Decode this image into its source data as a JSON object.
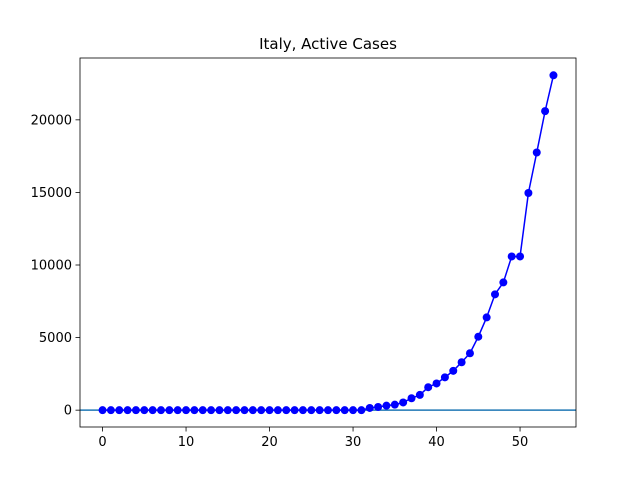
{
  "chart_data": {
    "type": "line",
    "title": "Italy, Active Cases",
    "xlabel": "",
    "ylabel": "",
    "xlim": [
      -2.7,
      56.7
    ],
    "ylim": [
      -1160,
      24260
    ],
    "xticks": [
      0,
      10,
      20,
      30,
      40,
      50
    ],
    "yticks": [
      0,
      5000,
      10000,
      15000,
      20000
    ],
    "grid": false,
    "reference_line": {
      "y": 0,
      "color": "#1f77b4"
    },
    "series": [
      {
        "color": "#0000ff",
        "marker": "circle",
        "x": [
          0,
          1,
          2,
          3,
          4,
          5,
          6,
          7,
          8,
          9,
          10,
          11,
          12,
          13,
          14,
          15,
          16,
          17,
          18,
          19,
          20,
          21,
          22,
          23,
          24,
          25,
          26,
          27,
          28,
          29,
          30,
          31,
          32,
          33,
          34,
          35,
          36,
          37,
          38,
          39,
          40,
          41,
          42,
          43,
          44,
          45,
          46,
          47,
          48,
          49,
          50,
          51,
          52,
          53,
          54
        ],
        "y": [
          0,
          0,
          0,
          0,
          0,
          0,
          0,
          0,
          0,
          0,
          0,
          0,
          0,
          0,
          0,
          0,
          0,
          0,
          0,
          0,
          0,
          0,
          0,
          0,
          0,
          0,
          0,
          0,
          0,
          0,
          0,
          0,
          150,
          220,
          310,
          380,
          530,
          820,
          1050,
          1580,
          1840,
          2260,
          2710,
          3300,
          3920,
          5060,
          6390,
          7980,
          8800,
          10590,
          10590,
          14960,
          17750,
          20600,
          23070
        ]
      }
    ]
  }
}
